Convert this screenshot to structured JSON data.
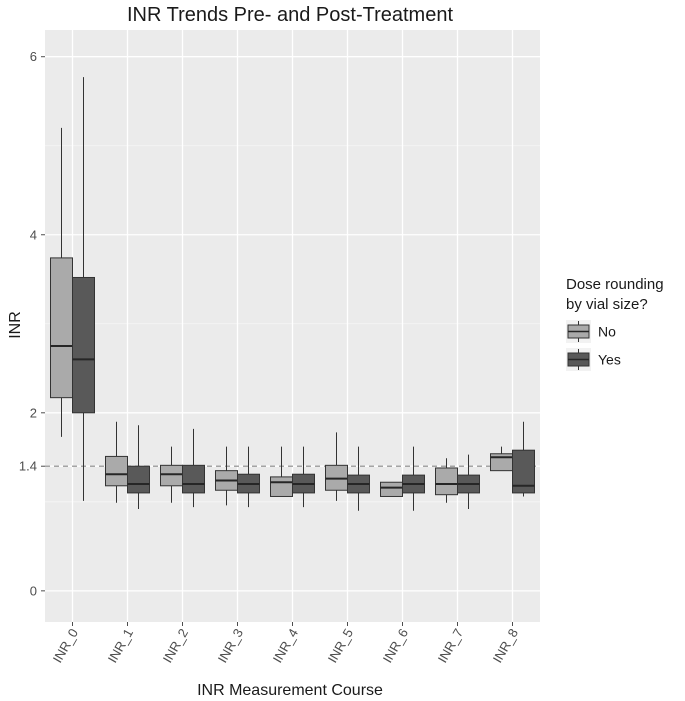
{
  "chart_data": {
    "type": "box",
    "title": "INR Trends Pre- and Post-Treatment",
    "xlabel": "INR Measurement Course",
    "ylabel": "INR",
    "ylim": [
      -0.35,
      6.3
    ],
    "y_ticks": [
      0,
      1.4,
      2,
      4,
      6
    ],
    "reference_line": {
      "y": 1.4,
      "style": "dashed"
    },
    "grid": true,
    "categories": [
      "INR_0",
      "INR_1",
      "INR_2",
      "INR_3",
      "INR_4",
      "INR_5",
      "INR_6",
      "INR_7",
      "INR_8"
    ],
    "legend": {
      "title_lines": [
        "Dose rounding",
        "by vial size?"
      ],
      "placement": "right"
    },
    "series": [
      {
        "name": "No",
        "color": "#aaaaaa",
        "boxes": [
          {
            "min": 1.73,
            "q1": 2.17,
            "median": 2.75,
            "q3": 3.74,
            "max": 5.2
          },
          {
            "min": 0.99,
            "q1": 1.18,
            "median": 1.31,
            "q3": 1.51,
            "max": 1.9
          },
          {
            "min": 0.99,
            "q1": 1.18,
            "median": 1.31,
            "q3": 1.41,
            "max": 1.62
          },
          {
            "min": 0.96,
            "q1": 1.13,
            "median": 1.24,
            "q3": 1.35,
            "max": 1.62
          },
          {
            "min": 1.06,
            "q1": 1.06,
            "median": 1.22,
            "q3": 1.28,
            "max": 1.62
          },
          {
            "min": 1.01,
            "q1": 1.13,
            "median": 1.26,
            "q3": 1.41,
            "max": 1.78
          },
          {
            "min": 1.06,
            "q1": 1.06,
            "median": 1.16,
            "q3": 1.22,
            "max": 1.22
          },
          {
            "min": 0.99,
            "q1": 1.08,
            "median": 1.2,
            "q3": 1.38,
            "max": 1.49
          },
          {
            "min": 1.35,
            "q1": 1.35,
            "median": 1.5,
            "q3": 1.54,
            "max": 1.62
          }
        ]
      },
      {
        "name": "Yes",
        "color": "#595959",
        "boxes": [
          {
            "min": 1.01,
            "q1": 2.0,
            "median": 2.6,
            "q3": 3.52,
            "max": 5.77
          },
          {
            "min": 0.92,
            "q1": 1.1,
            "median": 1.2,
            "q3": 1.4,
            "max": 1.86
          },
          {
            "min": 0.94,
            "q1": 1.1,
            "median": 1.2,
            "q3": 1.41,
            "max": 1.82
          },
          {
            "min": 0.94,
            "q1": 1.1,
            "median": 1.2,
            "q3": 1.31,
            "max": 1.62
          },
          {
            "min": 0.94,
            "q1": 1.1,
            "median": 1.2,
            "q3": 1.31,
            "max": 1.62
          },
          {
            "min": 0.9,
            "q1": 1.1,
            "median": 1.2,
            "q3": 1.3,
            "max": 1.62
          },
          {
            "min": 0.9,
            "q1": 1.1,
            "median": 1.2,
            "q3": 1.3,
            "max": 1.62
          },
          {
            "min": 0.92,
            "q1": 1.1,
            "median": 1.2,
            "q3": 1.3,
            "max": 1.53
          },
          {
            "min": 1.06,
            "q1": 1.1,
            "median": 1.18,
            "q3": 1.58,
            "max": 1.9
          }
        ]
      }
    ]
  }
}
